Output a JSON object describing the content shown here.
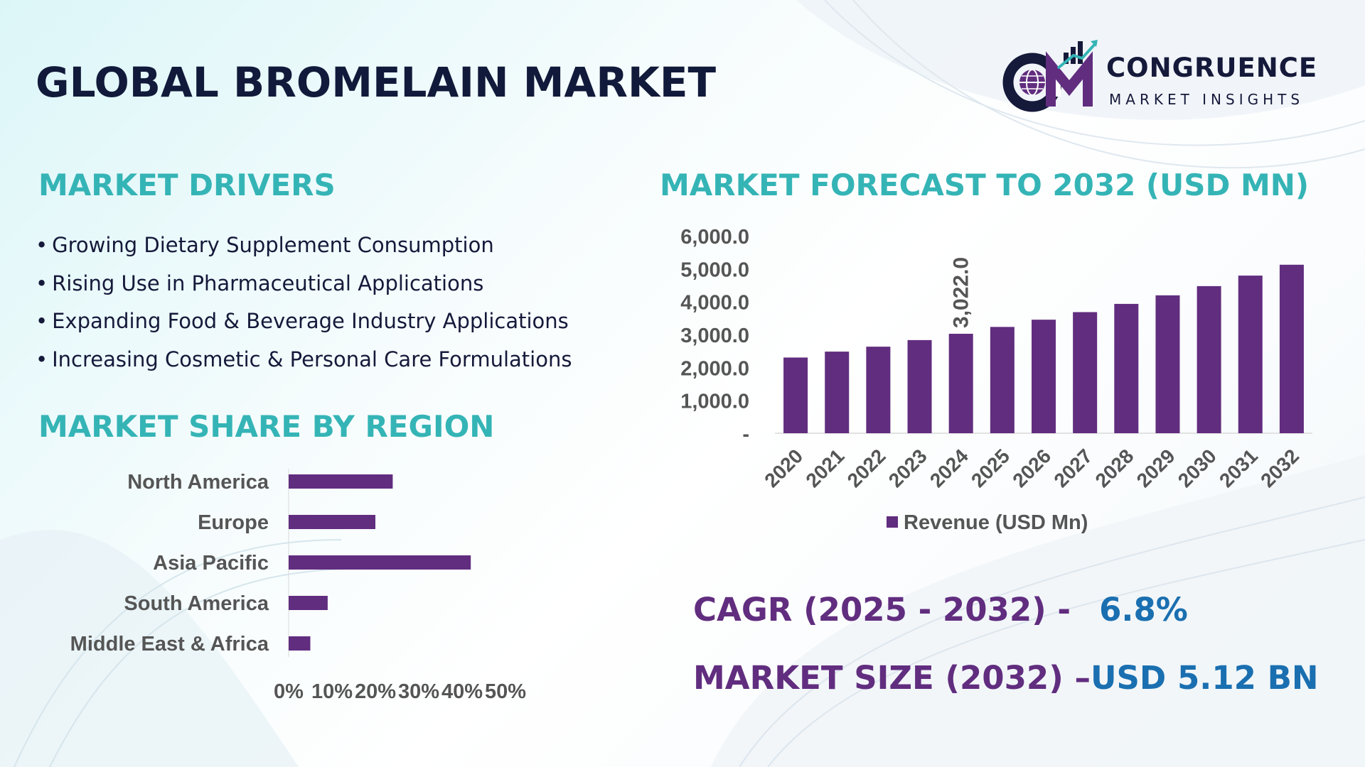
{
  "title": "GLOBAL BROMELAIN MARKET",
  "logo": {
    "name": "CONGRUENCE",
    "tagline": "MARKET INSIGHTS",
    "mark_icon": "cm-globe-growth-logo"
  },
  "drivers": {
    "title": "MARKET DRIVERS",
    "bullet": "•",
    "items": [
      "Growing Dietary Supplement Consumption",
      "Rising Use in Pharmaceutical Applications",
      "Expanding Food & Beverage Industry Applications",
      "Increasing Cosmetic & Personal Care Formulations"
    ]
  },
  "region": {
    "title": "MARKET SHARE BY REGION"
  },
  "forecast": {
    "title": "MARKET FORECAST TO 2032 (USD MN)"
  },
  "stats": {
    "cagr_label": "CAGR (2025 - 2032) -",
    "cagr_value": "6.8%",
    "size_label": "MARKET SIZE (2032) –",
    "size_value": "USD 5.12 BN"
  },
  "colors": {
    "title": "#111a3a",
    "section_title": "#35b4b6",
    "bar": "#612d7f",
    "stat_label": "#612d7f",
    "stat_value": "#1a6fb0",
    "axis_text": "#555555"
  },
  "chart_data": [
    {
      "type": "bar",
      "orientation": "horizontal",
      "categories": [
        "North America",
        "Europe",
        "Asia Pacific",
        "South America",
        "Middle East & Africa"
      ],
      "values": [
        24,
        20,
        42,
        9,
        5
      ],
      "xlim": [
        0,
        50
      ],
      "xticks": [
        "0%",
        "10%",
        "20%",
        "30%",
        "40%",
        "50%"
      ],
      "grid": false,
      "legend": "none"
    },
    {
      "type": "bar",
      "categories": [
        "2020",
        "2021",
        "2022",
        "2023",
        "2024",
        "2025",
        "2026",
        "2027",
        "2028",
        "2029",
        "2030",
        "2031",
        "2032"
      ],
      "series": [
        {
          "name": "Revenue (USD Mn)",
          "values": [
            2300,
            2480,
            2630,
            2830,
            3022,
            3230,
            3450,
            3680,
            3930,
            4190,
            4470,
            4790,
            5120
          ]
        }
      ],
      "ylim": [
        0,
        6000
      ],
      "yticks": [
        "-",
        "1,000.0",
        "2,000.0",
        "3,000.0",
        "4,000.0",
        "5,000.0",
        "6,000.0"
      ],
      "data_labels": [
        {
          "category": "2024",
          "text": "3,022.0"
        }
      ],
      "grid": false,
      "legend": "bottom"
    }
  ]
}
